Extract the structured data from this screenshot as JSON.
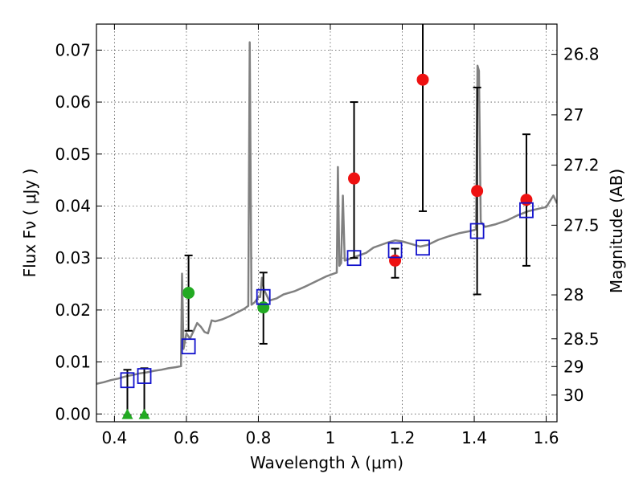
{
  "chart_data": {
    "type": "scatter",
    "xlabel": "Wavelength  λ (μm)",
    "ylabel": "Flux  Fν  ( μJy )",
    "y2label": "Magnitude (AB)",
    "xlim": [
      0.35,
      1.63
    ],
    "ylim": [
      -0.0015,
      0.075
    ],
    "grid": true,
    "x_ticks": [
      0.4,
      0.6,
      0.8,
      1.0,
      1.2,
      1.4,
      1.6
    ],
    "x_tick_labels": [
      "0.4",
      "0.6",
      "0.8",
      "1",
      "1.2",
      "1.4",
      "1.6"
    ],
    "y_ticks": [
      0.0,
      0.01,
      0.02,
      0.03,
      0.04,
      0.05,
      0.06,
      0.07
    ],
    "y_tick_labels": [
      "0.00",
      "0.01",
      "0.02",
      "0.03",
      "0.04",
      "0.05",
      "0.06",
      "0.07"
    ],
    "y2_ticks": [
      26.8,
      27,
      27.2,
      27.5,
      28,
      28.5,
      29,
      30
    ],
    "y2_tick_labels": [
      "26.8",
      "27",
      "27.2",
      "27.5",
      "28",
      "28.5",
      "29",
      "30"
    ],
    "colors": {
      "spectrum": "#808080",
      "green": "#22aa22",
      "red": "#ee1111",
      "model": "#1111cc",
      "errorbar": "#000000",
      "grid": "#555555"
    },
    "spectrum": [
      [
        0.35,
        0.0058
      ],
      [
        0.37,
        0.0061
      ],
      [
        0.39,
        0.0065
      ],
      [
        0.41,
        0.0068
      ],
      [
        0.43,
        0.0072
      ],
      [
        0.45,
        0.0075
      ],
      [
        0.47,
        0.0078
      ],
      [
        0.49,
        0.008
      ],
      [
        0.51,
        0.0083
      ],
      [
        0.53,
        0.0085
      ],
      [
        0.55,
        0.0088
      ],
      [
        0.57,
        0.009
      ],
      [
        0.585,
        0.0092
      ],
      [
        0.588,
        0.027
      ],
      [
        0.592,
        0.0125
      ],
      [
        0.6,
        0.0155
      ],
      [
        0.61,
        0.0145
      ],
      [
        0.62,
        0.016
      ],
      [
        0.63,
        0.0175
      ],
      [
        0.64,
        0.0168
      ],
      [
        0.65,
        0.0158
      ],
      [
        0.66,
        0.0155
      ],
      [
        0.67,
        0.018
      ],
      [
        0.68,
        0.0178
      ],
      [
        0.7,
        0.0182
      ],
      [
        0.72,
        0.0188
      ],
      [
        0.74,
        0.0195
      ],
      [
        0.76,
        0.0202
      ],
      [
        0.772,
        0.0208
      ],
      [
        0.776,
        0.0715
      ],
      [
        0.781,
        0.021
      ],
      [
        0.79,
        0.0215
      ],
      [
        0.8,
        0.0225
      ],
      [
        0.805,
        0.0225
      ],
      [
        0.81,
        0.0262
      ],
      [
        0.815,
        0.024
      ],
      [
        0.83,
        0.0218
      ],
      [
        0.85,
        0.0222
      ],
      [
        0.87,
        0.023
      ],
      [
        0.9,
        0.0236
      ],
      [
        0.93,
        0.0245
      ],
      [
        0.96,
        0.0255
      ],
      [
        0.99,
        0.0265
      ],
      [
        1.01,
        0.027
      ],
      [
        1.018,
        0.0272
      ],
      [
        1.021,
        0.0475
      ],
      [
        1.025,
        0.0285
      ],
      [
        1.03,
        0.029
      ],
      [
        1.035,
        0.042
      ],
      [
        1.04,
        0.0295
      ],
      [
        1.06,
        0.03
      ],
      [
        1.08,
        0.0305
      ],
      [
        1.1,
        0.031
      ],
      [
        1.12,
        0.032
      ],
      [
        1.14,
        0.0325
      ],
      [
        1.16,
        0.033
      ],
      [
        1.18,
        0.0334
      ],
      [
        1.2,
        0.0332
      ],
      [
        1.22,
        0.0328
      ],
      [
        1.25,
        0.0322
      ],
      [
        1.27,
        0.0325
      ],
      [
        1.3,
        0.0335
      ],
      [
        1.33,
        0.0342
      ],
      [
        1.36,
        0.0348
      ],
      [
        1.39,
        0.0352
      ],
      [
        1.405,
        0.0355
      ],
      [
        1.409,
        0.067
      ],
      [
        1.413,
        0.066
      ],
      [
        1.418,
        0.037
      ],
      [
        1.43,
        0.036
      ],
      [
        1.46,
        0.0365
      ],
      [
        1.49,
        0.0372
      ],
      [
        1.52,
        0.0382
      ],
      [
        1.55,
        0.039
      ],
      [
        1.58,
        0.0395
      ],
      [
        1.6,
        0.0398
      ],
      [
        1.62,
        0.042
      ],
      [
        1.63,
        0.0405
      ]
    ],
    "photometry_green": [
      {
        "x": 0.436,
        "y": -0.0002,
        "marker": "triangle"
      },
      {
        "x": 0.483,
        "y": -0.0002,
        "marker": "triangle"
      },
      {
        "x": 0.606,
        "y": 0.0233,
        "ylo": 0.016,
        "yhi": 0.0305,
        "marker": "circle"
      },
      {
        "x": 0.814,
        "y": 0.0205,
        "ylo": 0.0135,
        "yhi": 0.0272,
        "marker": "circle"
      }
    ],
    "photometry_red": [
      {
        "x": 1.066,
        "y": 0.0453,
        "ylo": 0.03,
        "yhi": 0.06
      },
      {
        "x": 1.18,
        "y": 0.0295,
        "ylo": 0.0262,
        "yhi": 0.0318
      },
      {
        "x": 1.257,
        "y": 0.0643,
        "ylo": 0.039,
        "yhi": 0.076
      },
      {
        "x": 1.408,
        "y": 0.0429,
        "ylo": 0.023,
        "yhi": 0.0628
      },
      {
        "x": 1.545,
        "y": 0.0412,
        "ylo": 0.0285,
        "yhi": 0.0538
      }
    ],
    "errorbars_extra": [
      {
        "x": 0.436,
        "ylo": -0.0002,
        "yhi": 0.0085
      },
      {
        "x": 0.483,
        "ylo": -0.0002,
        "yhi": 0.0088
      }
    ],
    "model_points": [
      {
        "x": 0.436,
        "y": 0.0065
      },
      {
        "x": 0.483,
        "y": 0.0073
      },
      {
        "x": 0.606,
        "y": 0.013
      },
      {
        "x": 0.814,
        "y": 0.0225
      },
      {
        "x": 1.066,
        "y": 0.03
      },
      {
        "x": 1.18,
        "y": 0.0315
      },
      {
        "x": 1.257,
        "y": 0.032
      },
      {
        "x": 1.408,
        "y": 0.0352
      },
      {
        "x": 1.545,
        "y": 0.0392
      }
    ]
  }
}
